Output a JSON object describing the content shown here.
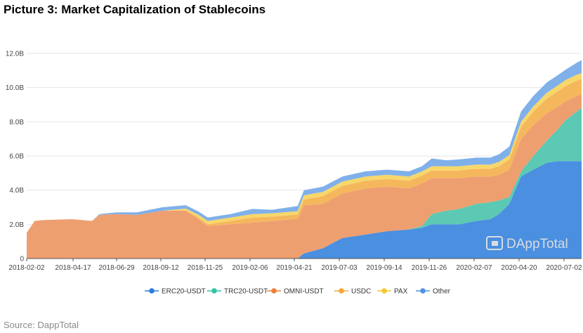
{
  "title": "Picture 3: Market Capitalization of Stablecoins",
  "source": "Source: DappTotal",
  "watermark": "DAppTotal",
  "colors": {
    "ERC20-USDT": "#4a8fe0",
    "TRC20-USDT": "#5cc9b4",
    "OMNI-USDT": "#ee9f70",
    "USDC": "#f5b75c",
    "PAX": "#f7d76a",
    "Other": "#7fb0ea"
  },
  "legend_markers": {
    "ERC20-USDT": "#2a7bdc",
    "TRC20-USDT": "#33c1a2",
    "OMNI-USDT": "#ef7f3a",
    "USDC": "#f3a83b",
    "PAX": "#f6c731",
    "Other": "#4f93e4"
  },
  "chart_data": {
    "type": "area",
    "stacked": true,
    "x_tick_labels": [
      "2018-02-02",
      "2018-04-17",
      "2018-06-29",
      "2018-09-12",
      "2018-11-25",
      "2019-02-06",
      "2019-04-21",
      "2019-07-03",
      "2019-09-14",
      "2019-11-26",
      "2020-02-07",
      "2020-04-20",
      "2020-07-02"
    ],
    "y_tick_labels": [
      "0",
      "2.0B",
      "4.0B",
      "6.0B",
      "8.0B",
      "10.0B",
      "12.0B"
    ],
    "ylim": [
      0,
      12.0
    ],
    "y_unit": "B",
    "x": [
      "2018-02-02",
      "2018-02-15",
      "2018-03-01",
      "2018-04-17",
      "2018-05-20",
      "2018-06-01",
      "2018-06-29",
      "2018-08-01",
      "2018-09-12",
      "2018-10-20",
      "2018-11-10",
      "2018-11-25",
      "2019-01-01",
      "2019-02-06",
      "2019-03-10",
      "2019-04-21",
      "2019-05-01",
      "2019-06-01",
      "2019-07-03",
      "2019-08-10",
      "2019-09-14",
      "2019-10-20",
      "2019-11-10",
      "2019-11-26",
      "2019-12-20",
      "2020-01-10",
      "2020-02-07",
      "2020-03-01",
      "2020-03-15",
      "2020-04-01",
      "2020-04-20",
      "2020-05-10",
      "2020-06-01",
      "2020-06-20",
      "2020-07-02",
      "2020-07-20",
      "2020-07-28"
    ],
    "series": [
      {
        "name": "ERC20-USDT",
        "values": [
          0,
          0,
          0,
          0,
          0,
          0,
          0,
          0,
          0,
          0,
          0,
          0,
          0,
          0,
          0,
          0.02,
          0.3,
          0.6,
          1.2,
          1.4,
          1.6,
          1.7,
          1.8,
          2.0,
          2.0,
          2.0,
          2.2,
          2.3,
          2.6,
          3.2,
          4.8,
          5.2,
          5.6,
          5.7,
          5.7,
          5.7,
          5.7
        ]
      },
      {
        "name": "TRC20-USDT",
        "values": [
          0,
          0,
          0,
          0,
          0,
          0,
          0,
          0,
          0,
          0,
          0,
          0,
          0,
          0,
          0,
          0,
          0,
          0,
          0,
          0,
          0,
          0,
          0.1,
          0.6,
          0.8,
          0.9,
          1.0,
          1.0,
          0.8,
          0.4,
          0.3,
          0.8,
          1.3,
          1.9,
          2.4,
          2.9,
          3.1
        ]
      },
      {
        "name": "OMNI-USDT",
        "values": [
          1.5,
          2.2,
          2.25,
          2.3,
          2.2,
          2.55,
          2.6,
          2.55,
          2.8,
          2.8,
          2.3,
          1.9,
          2.0,
          2.1,
          2.2,
          2.3,
          2.8,
          2.6,
          2.6,
          2.7,
          2.6,
          2.4,
          2.5,
          2.1,
          1.9,
          1.8,
          1.6,
          1.5,
          1.5,
          1.6,
          1.9,
          1.8,
          1.6,
          1.3,
          1.1,
          0.9,
          0.8
        ]
      },
      {
        "name": "USDC",
        "values": [
          0,
          0,
          0,
          0,
          0,
          0,
          0,
          0,
          0,
          0.02,
          0.1,
          0.1,
          0.2,
          0.3,
          0.25,
          0.25,
          0.35,
          0.45,
          0.45,
          0.45,
          0.45,
          0.45,
          0.45,
          0.45,
          0.45,
          0.45,
          0.45,
          0.45,
          0.5,
          0.6,
          0.7,
          0.8,
          0.85,
          0.9,
          0.9,
          0.9,
          0.9
        ]
      },
      {
        "name": "PAX",
        "values": [
          0,
          0,
          0,
          0,
          0,
          0,
          0,
          0,
          0,
          0.1,
          0.15,
          0.2,
          0.2,
          0.2,
          0.2,
          0.2,
          0.25,
          0.25,
          0.25,
          0.25,
          0.25,
          0.25,
          0.25,
          0.25,
          0.25,
          0.25,
          0.25,
          0.25,
          0.25,
          0.25,
          0.3,
          0.3,
          0.35,
          0.35,
          0.35,
          0.35,
          0.35
        ]
      },
      {
        "name": "Other",
        "values": [
          0,
          0,
          0,
          0,
          0,
          0.05,
          0.1,
          0.15,
          0.2,
          0.2,
          0.2,
          0.2,
          0.2,
          0.3,
          0.2,
          0.3,
          0.3,
          0.3,
          0.3,
          0.3,
          0.3,
          0.3,
          0.3,
          0.45,
          0.35,
          0.4,
          0.4,
          0.4,
          0.45,
          0.5,
          0.6,
          0.6,
          0.6,
          0.6,
          0.6,
          0.7,
          0.75
        ]
      }
    ],
    "grid": "horizontal",
    "legend_position": "bottom"
  }
}
